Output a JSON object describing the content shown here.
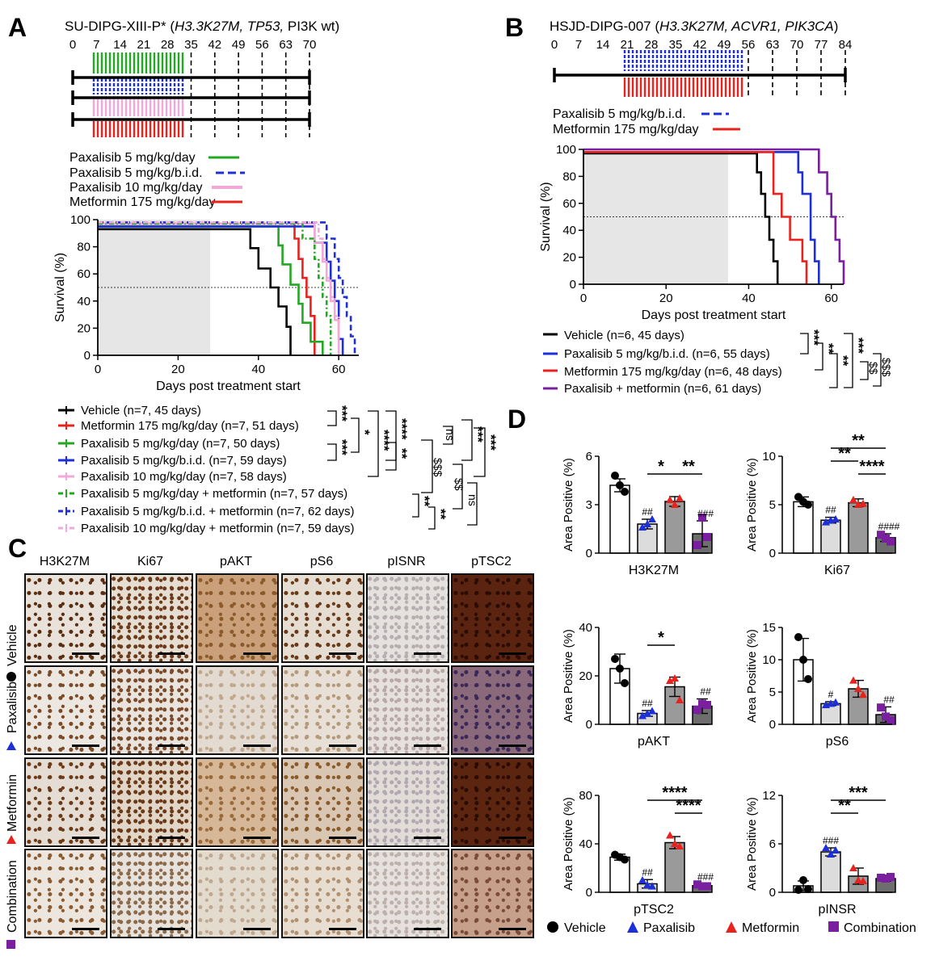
{
  "colors": {
    "vehicle": "#000000",
    "metformin": "#e8231e",
    "pax5": "#22a822",
    "pax5bid": "#1d2fd6",
    "pax10": "#f2a9d8",
    "combo": "#7a1fa0",
    "shade": "#e6e6e6"
  },
  "panelA": {
    "letter": "A",
    "model": "SU-DIPG-XIII-P* (",
    "genes": "H3.3K27M, TP53,",
    "suffix": " PI3K wt)",
    "days": [
      "0",
      "7",
      "14",
      "21",
      "28",
      "35",
      "42",
      "49",
      "56",
      "63",
      "70"
    ],
    "legend": [
      "Paxalisib 5 mg/kg/day",
      "Paxalisib 5 mg/kg/b.i.d.",
      "Paxalisib 10 mg/kg/day",
      "Metformin 175 mg/kg/day"
    ],
    "groups": [
      "Vehicle  (n=7, 45 days)",
      "Metformin 175 mg/kg/day (n=7, 51 days)",
      "Paxalisib 5 mg/kg/day (n=7, 50 days)",
      "Paxalisib 5 mg/kg/b.i.d. (n=7, 59 days)",
      "Paxalisib 10 mg/kg/day (n=7, 58 days)",
      "Paxalisib 5 mg/kg/day + metformin (n=7, 57 days)",
      "Paxalisib 5 mg/kg/b.i.d. + metformin (n=7, 62 days)",
      "Paxalisib 10 mg/kg/day + metformin (n=7, 59 days)"
    ],
    "sig": {
      "s1": "***",
      "s2": "***",
      "s3": "*",
      "s4": "****",
      "s5": "****",
      "s6": "**",
      "s7": "ns",
      "s8": "$$$",
      "s9": "***",
      "s10": "***",
      "s11": "$$",
      "s12": "ns",
      "s13": "**",
      "s14": "**"
    }
  },
  "panelB": {
    "letter": "B",
    "model": "HSJD-DIPG-007 (",
    "genes": "H3.3K27M, ACVR1, PIK3CA",
    "suffix": ")",
    "days": [
      "0",
      "7",
      "14",
      "21",
      "28",
      "35",
      "42",
      "49",
      "56",
      "63",
      "70",
      "77",
      "84"
    ],
    "legend": [
      "Paxalisib 5 mg/kg/b.i.d.",
      "Metformin 175 mg/kg/day"
    ],
    "groups": [
      "Vehicle (n=6, 45 days)",
      "Paxalisib 5 mg/kg/b.i.d. (n=6, 55 days)",
      "Metformin 175 mg/kg/day (n=6, 48 days)",
      "Paxalisib + metformin (n=6, 61 days)"
    ],
    "sig": {
      "s1": "***",
      "s2": "**",
      "s3": "**",
      "s4": "***",
      "s5": "$$",
      "s6": "$$$"
    }
  },
  "panelC": {
    "letter": "C",
    "columns": [
      "H3K27M",
      "Ki67",
      "pAKT",
      "pS6",
      "pISNR",
      "pTSC2"
    ],
    "rows": [
      "Vehicle",
      "Paxalisib",
      "Metformin",
      "Combination"
    ]
  },
  "panelD": {
    "letter": "D",
    "legend": [
      "Vehicle",
      "Paxalisib",
      "Metformin",
      "Combination"
    ],
    "ylabel": "Area Positive (%)"
  },
  "chart_data": [
    {
      "type": "line",
      "title": "SU-DIPG-XIII-P* survival",
      "xlabel": "Days post treatment start",
      "ylabel": "Survival (%)",
      "xlim": [
        0,
        65
      ],
      "ylim": [
        0,
        100
      ],
      "xticks": [
        "0",
        "20",
        "40",
        "60"
      ],
      "yticks": [
        "0",
        "20",
        "40",
        "60",
        "80",
        "100"
      ],
      "treatment_window_days": [
        0,
        28
      ],
      "median_line": 50,
      "series": [
        {
          "name": "Vehicle",
          "color": "#000000",
          "dash": "",
          "x": [
            0,
            38,
            38,
            40,
            40,
            43,
            43,
            45,
            45,
            47,
            47,
            48,
            48
          ],
          "y": [
            93,
            93,
            79,
            79,
            64,
            64,
            50,
            50,
            36,
            36,
            21,
            21,
            0
          ]
        },
        {
          "name": "Metformin 175 mg/kg/day",
          "color": "#e8231e",
          "dash": "",
          "x": [
            0,
            49,
            49,
            50,
            50,
            51,
            51,
            52,
            52,
            53,
            53,
            54,
            54
          ],
          "y": [
            97,
            97,
            86,
            86,
            71,
            71,
            57,
            57,
            43,
            43,
            29,
            29,
            0
          ]
        },
        {
          "name": "Paxalisib 5 mg/kg/day",
          "color": "#22a822",
          "dash": "",
          "x": [
            0,
            45,
            45,
            46,
            46,
            48,
            48,
            50,
            50,
            51,
            51,
            53,
            53,
            56,
            56
          ],
          "y": [
            95,
            95,
            81,
            81,
            67,
            67,
            52,
            52,
            38,
            38,
            24,
            24,
            10,
            10,
            0
          ]
        },
        {
          "name": "Paxalisib 5 mg/kg/b.i.d.",
          "color": "#1d2fd6",
          "dash": "",
          "x": [
            0,
            54,
            54,
            57,
            57,
            58,
            58,
            59,
            59,
            60,
            60,
            61,
            61
          ],
          "y": [
            95,
            95,
            83,
            83,
            69,
            69,
            55,
            55,
            40,
            40,
            12,
            12,
            0
          ]
        },
        {
          "name": "Paxalisib 10 mg/kg/day",
          "color": "#f2a9d8",
          "dash": "",
          "x": [
            0,
            54,
            54,
            56,
            56,
            57,
            57,
            58,
            58,
            59,
            59,
            60,
            60
          ],
          "y": [
            97,
            97,
            83,
            83,
            69,
            69,
            55,
            55,
            40,
            40,
            26,
            26,
            0
          ]
        },
        {
          "name": "Paxalisib 5 mg/kg/day + metformin",
          "color": "#22a822",
          "dash": "6 3 2 3",
          "x": [
            0,
            51,
            51,
            54,
            54,
            55,
            55,
            56,
            56,
            57,
            57,
            58,
            58
          ],
          "y": [
            97,
            97,
            86,
            86,
            71,
            71,
            57,
            57,
            43,
            43,
            29,
            29,
            0
          ]
        },
        {
          "name": "Paxalisib 5 mg/kg/b.i.d. + metformin",
          "color": "#1d2fd6",
          "dash": "7 4",
          "x": [
            0,
            57,
            57,
            59,
            59,
            60,
            60,
            61,
            61,
            62,
            62,
            63,
            63,
            64,
            64
          ],
          "y": [
            98,
            98,
            86,
            86,
            71,
            71,
            57,
            57,
            43,
            43,
            29,
            29,
            14,
            14,
            0
          ]
        },
        {
          "name": "Paxalisib 10 mg/kg/day + metformin",
          "color": "#f2a9d8",
          "dash": "6 3 2 3",
          "x": [
            0,
            55,
            55,
            56,
            56,
            57,
            57,
            58,
            58,
            59,
            59,
            60,
            60
          ],
          "y": [
            98,
            98,
            86,
            86,
            71,
            71,
            57,
            57,
            43,
            43,
            29,
            29,
            0
          ]
        }
      ]
    },
    {
      "type": "line",
      "title": "HSJD-DIPG-007 survival",
      "xlabel": "Days post treatment start",
      "ylabel": "Survival (%)",
      "xlim": [
        0,
        63
      ],
      "ylim": [
        0,
        100
      ],
      "xticks": [
        "0",
        "20",
        "40",
        "60"
      ],
      "yticks": [
        "0",
        "20",
        "40",
        "60",
        "80",
        "100"
      ],
      "treatment_window_days": [
        0,
        35
      ],
      "median_line": 50,
      "series": [
        {
          "name": "Vehicle",
          "color": "#000000",
          "dash": "",
          "x": [
            0,
            42,
            42,
            43,
            43,
            44,
            44,
            45,
            45,
            46,
            46,
            47,
            47
          ],
          "y": [
            97,
            97,
            83,
            83,
            67,
            67,
            50,
            50,
            33,
            33,
            17,
            17,
            0
          ]
        },
        {
          "name": "Paxalisib 5 mg/kg/b.i.d.",
          "color": "#1d2fd6",
          "dash": "",
          "x": [
            0,
            52,
            52,
            53,
            53,
            55,
            55,
            56,
            56,
            57,
            57
          ],
          "y": [
            98,
            98,
            83,
            83,
            67,
            67,
            33,
            33,
            17,
            17,
            0
          ]
        },
        {
          "name": "Metformin 175 mg/kg/day",
          "color": "#e8231e",
          "dash": "",
          "x": [
            0,
            46,
            46,
            48,
            48,
            50,
            50,
            53,
            53,
            54,
            54
          ],
          "y": [
            98,
            98,
            67,
            67,
            50,
            50,
            33,
            33,
            17,
            17,
            0
          ]
        },
        {
          "name": "Paxalisib + metformin",
          "color": "#7a1fa0",
          "dash": "",
          "x": [
            0,
            57,
            57,
            59,
            59,
            60,
            60,
            61,
            61,
            62,
            62,
            63,
            63
          ],
          "y": [
            100,
            100,
            83,
            83,
            67,
            67,
            50,
            50,
            33,
            33,
            17,
            17,
            0
          ]
        }
      ]
    },
    {
      "type": "bar",
      "title": "H3K27M",
      "ylim": [
        0,
        6
      ],
      "yticks": [
        "0",
        "3",
        "6"
      ],
      "categories": [
        "Vehicle",
        "Paxalisib",
        "Metformin",
        "Combination"
      ],
      "values": [
        4.2,
        1.8,
        3.2,
        1.2
      ],
      "errors": [
        0.4,
        0.3,
        0.3,
        0.8
      ],
      "points": [
        [
          4.8,
          4.2,
          3.8
        ],
        [
          1.6,
          1.8,
          2.1
        ],
        [
          3.3,
          3.0,
          3.4
        ],
        [
          0.5,
          2.2,
          1.0
        ]
      ],
      "marks": [
        "",
        "##",
        "",
        "###"
      ],
      "brackets": [
        {
          "from": 1,
          "to": 2,
          "label": "*",
          "level": 0
        },
        {
          "from": 2,
          "to": 3,
          "label": "**",
          "level": 0
        }
      ]
    },
    {
      "type": "bar",
      "title": "Ki67",
      "ylim": [
        0,
        10
      ],
      "yticks": [
        "0",
        "5",
        "10"
      ],
      "categories": [
        "Vehicle",
        "Paxalisib",
        "Metformin",
        "Combination"
      ],
      "values": [
        5.3,
        3.4,
        5.2,
        1.6
      ],
      "errors": [
        0.5,
        0.3,
        0.4,
        0.4
      ],
      "points": [
        [
          5.8,
          5.3,
          5.0
        ],
        [
          3.2,
          3.4,
          3.5
        ],
        [
          5.5,
          5.0,
          5.1
        ],
        [
          1.9,
          1.5,
          1.2
        ]
      ],
      "marks": [
        "",
        "##",
        "",
        "####"
      ],
      "brackets": [
        {
          "from": 1,
          "to": 2,
          "label": "**",
          "level": 1
        },
        {
          "from": 1,
          "to": 3,
          "label": "**",
          "level": 2
        },
        {
          "from": 2,
          "to": 3,
          "label": "****",
          "level": 0
        }
      ]
    },
    {
      "type": "bar",
      "title": "pAKT",
      "ylim": [
        0,
        40
      ],
      "yticks": [
        "0",
        "20",
        "40"
      ],
      "categories": [
        "Vehicle",
        "Paxalisib",
        "Metformin",
        "Combination"
      ],
      "values": [
        23,
        4.5,
        15.5,
        7.5
      ],
      "errors": [
        6,
        1.2,
        4,
        3
      ],
      "points": [
        [
          27,
          23,
          17
        ],
        [
          3.5,
          4.5,
          5.5
        ],
        [
          18,
          19,
          10
        ],
        [
          6,
          8.5,
          8
        ]
      ],
      "marks": [
        "",
        "##",
        "",
        "##"
      ],
      "brackets": [
        {
          "from": 1,
          "to": 2,
          "label": "*",
          "level": 0
        }
      ]
    },
    {
      "type": "bar",
      "title": "pS6",
      "ylim": [
        0,
        15
      ],
      "yticks": [
        "0",
        "5",
        "10",
        "15"
      ],
      "categories": [
        "Vehicle",
        "Paxalisib",
        "Metformin",
        "Combination"
      ],
      "values": [
        10,
        3.2,
        5.5,
        1.5
      ],
      "errors": [
        3.3,
        0.3,
        1.3,
        1.2
      ],
      "points": [
        [
          13.5,
          10,
          7
        ],
        [
          3,
          3.2,
          3.4
        ],
        [
          6.8,
          5.5,
          4.6
        ],
        [
          2.6,
          1.2,
          0.6
        ]
      ],
      "marks": [
        "",
        "#",
        "",
        "##"
      ],
      "brackets": []
    },
    {
      "type": "bar",
      "title": "pTSC2",
      "ylim": [
        0,
        80
      ],
      "yticks": [
        "0",
        "40",
        "80"
      ],
      "categories": [
        "Vehicle",
        "Paxalisib",
        "Metformin",
        "Combination"
      ],
      "values": [
        29,
        7,
        41,
        5.5
      ],
      "errors": [
        2.5,
        3.5,
        5,
        1.2
      ],
      "points": [
        [
          31,
          29,
          27
        ],
        [
          10,
          6,
          5
        ],
        [
          47,
          40,
          38
        ],
        [
          6.5,
          5,
          5
        ]
      ],
      "marks": [
        "",
        "##",
        "",
        "###"
      ],
      "brackets": [
        {
          "from": 2,
          "to": 3,
          "label": "****",
          "level": 0
        },
        {
          "from": 1,
          "to": 3,
          "label": "****",
          "level": 1
        }
      ]
    },
    {
      "type": "bar",
      "title": "pINSR",
      "ylim": [
        0,
        12
      ],
      "yticks": [
        "0",
        "6",
        "12"
      ],
      "categories": [
        "Vehicle",
        "Paxalisib",
        "Metformin",
        "Combination"
      ],
      "values": [
        0.8,
        5,
        2,
        1.7
      ],
      "errors": [
        0.6,
        0.5,
        1,
        0.3
      ],
      "points": [
        [
          0.3,
          1.5,
          0.4
        ],
        [
          5.5,
          4.7,
          5.2
        ],
        [
          3,
          1.5,
          1.4
        ],
        [
          1.8,
          1.7,
          1.9
        ]
      ],
      "marks": [
        "",
        "###",
        "",
        ""
      ],
      "brackets": [
        {
          "from": 1,
          "to": 2,
          "label": "**",
          "level": 0
        },
        {
          "from": 1,
          "to": 3,
          "label": "***",
          "level": 1
        }
      ]
    }
  ]
}
